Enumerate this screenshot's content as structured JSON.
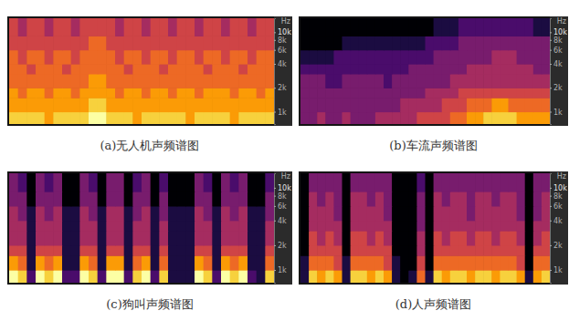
{
  "chart_data": [
    {
      "type": "heatmap",
      "title": "(a)无人机声频谱图",
      "y_label": "Hz",
      "log": "y",
      "tick_labels": "y",
      "ylim": [
        700,
        15000
      ],
      "yticks": [
        {
          "value": 1000,
          "label": "1k"
        },
        {
          "value": 2000,
          "label": "2k"
        },
        {
          "value": 4000,
          "label": "4k"
        },
        {
          "value": 6000,
          "label": "6k"
        },
        {
          "value": 8000,
          "label": "8k"
        },
        {
          "value": 10000,
          "label": "10k"
        }
      ],
      "y_bins": [
        700,
        1000,
        1500,
        2000,
        3000,
        4000,
        6000,
        9000,
        15000
      ],
      "zlim": [
        0,
        9
      ],
      "cells": [
        [
          8,
          8,
          8,
          8,
          7,
          8,
          8,
          8,
          8,
          9,
          9,
          8,
          8,
          8,
          7,
          8,
          8,
          8,
          8,
          8,
          7,
          8,
          8,
          8,
          8,
          7,
          8,
          8,
          8,
          8
        ],
        [
          7,
          7,
          7,
          7,
          7,
          7,
          7,
          7,
          7,
          8,
          8,
          7,
          7,
          7,
          7,
          7,
          7,
          7,
          7,
          7,
          7,
          7,
          7,
          7,
          7,
          7,
          7,
          7,
          7,
          7
        ],
        [
          7,
          6,
          7,
          7,
          6,
          7,
          7,
          6,
          7,
          7,
          7,
          7,
          6,
          7,
          7,
          6,
          7,
          7,
          6,
          7,
          7,
          6,
          7,
          7,
          7,
          6,
          7,
          7,
          6,
          7
        ],
        [
          6,
          6,
          6,
          6,
          6,
          6,
          6,
          6,
          6,
          7,
          7,
          6,
          6,
          6,
          6,
          6,
          6,
          6,
          6,
          6,
          6,
          6,
          6,
          6,
          6,
          6,
          6,
          6,
          6,
          6
        ],
        [
          6,
          6,
          5,
          6,
          6,
          6,
          5,
          6,
          6,
          6,
          6,
          6,
          6,
          5,
          6,
          6,
          6,
          5,
          6,
          6,
          6,
          6,
          5,
          6,
          6,
          6,
          5,
          6,
          6,
          6
        ],
        [
          6,
          5,
          6,
          6,
          5,
          6,
          6,
          5,
          6,
          6,
          6,
          6,
          5,
          6,
          6,
          5,
          6,
          6,
          5,
          6,
          6,
          5,
          6,
          6,
          5,
          6,
          6,
          5,
          6,
          6
        ],
        [
          5,
          5,
          5,
          5,
          5,
          5,
          5,
          5,
          5,
          6,
          6,
          5,
          5,
          5,
          5,
          5,
          5,
          5,
          5,
          5,
          5,
          5,
          5,
          5,
          5,
          5,
          5,
          5,
          5,
          5
        ],
        [
          5,
          4,
          5,
          5,
          4,
          5,
          5,
          4,
          5,
          5,
          5,
          5,
          4,
          5,
          5,
          4,
          5,
          5,
          4,
          5,
          5,
          4,
          5,
          5,
          4,
          5,
          5,
          4,
          5,
          5
        ]
      ]
    },
    {
      "type": "heatmap",
      "title": "(b)车流声频谱图",
      "y_label": "Hz",
      "log": "y",
      "tick_labels": "y",
      "ylim": [
        700,
        15000
      ],
      "yticks": [
        {
          "value": 1000,
          "label": "1k"
        },
        {
          "value": 2000,
          "label": "2k"
        },
        {
          "value": 4000,
          "label": "4k"
        },
        {
          "value": 6000,
          "label": "6k"
        },
        {
          "value": 8000,
          "label": "8k"
        },
        {
          "value": 10000,
          "label": "10k"
        }
      ],
      "y_bins": [
        700,
        1000,
        1500,
        2000,
        3000,
        4000,
        6000,
        9000,
        15000
      ],
      "zlim": [
        0,
        9
      ],
      "cells": [
        [
          3,
          3,
          4,
          3,
          3,
          4,
          3,
          3,
          3,
          4,
          4,
          4,
          4,
          4,
          5,
          5,
          5,
          5,
          6,
          6,
          7,
          7,
          8,
          8,
          8,
          8,
          7,
          7,
          7,
          7
        ],
        [
          3,
          3,
          3,
          3,
          3,
          3,
          3,
          3,
          3,
          3,
          3,
          3,
          4,
          4,
          4,
          4,
          4,
          5,
          5,
          5,
          6,
          6,
          6,
          7,
          7,
          6,
          6,
          6,
          6,
          6
        ],
        [
          3,
          3,
          3,
          3,
          3,
          3,
          3,
          3,
          3,
          3,
          3,
          3,
          3,
          3,
          3,
          4,
          4,
          4,
          4,
          5,
          5,
          5,
          5,
          5,
          5,
          5,
          5,
          5,
          5,
          5
        ],
        [
          3,
          3,
          3,
          2,
          2,
          3,
          3,
          3,
          3,
          3,
          2,
          3,
          3,
          3,
          3,
          3,
          3,
          3,
          4,
          4,
          4,
          4,
          4,
          4,
          4,
          4,
          4,
          4,
          4,
          4
        ],
        [
          2,
          2,
          2,
          2,
          2,
          2,
          2,
          2,
          2,
          2,
          2,
          2,
          2,
          3,
          3,
          3,
          3,
          3,
          3,
          3,
          4,
          4,
          4,
          4,
          4,
          4,
          4,
          4,
          3,
          3
        ],
        [
          1,
          1,
          1,
          1,
          2,
          2,
          2,
          2,
          2,
          2,
          2,
          2,
          2,
          2,
          2,
          2,
          3,
          3,
          3,
          3,
          3,
          3,
          3,
          4,
          4,
          4,
          3,
          3,
          3,
          3
        ],
        [
          0,
          0,
          0,
          0,
          0,
          1,
          1,
          1,
          1,
          1,
          1,
          1,
          1,
          1,
          1,
          2,
          2,
          2,
          2,
          3,
          3,
          3,
          3,
          3,
          3,
          3,
          3,
          3,
          3,
          3
        ],
        [
          0,
          0,
          0,
          0,
          0,
          0,
          0,
          0,
          0,
          0,
          0,
          0,
          0,
          0,
          0,
          0,
          1,
          1,
          1,
          2,
          2,
          2,
          2,
          2,
          2,
          2,
          2,
          2,
          1,
          1
        ]
      ]
    },
    {
      "type": "heatmap",
      "title": "(c)狗叫声频谱图",
      "y_label": "Hz",
      "log": "y",
      "tick_labels": "y",
      "ylim": [
        700,
        15000
      ],
      "yticks": [
        {
          "value": 1000,
          "label": "1k"
        },
        {
          "value": 2000,
          "label": "2k"
        },
        {
          "value": 4000,
          "label": "4k"
        },
        {
          "value": 6000,
          "label": "6k"
        },
        {
          "value": 8000,
          "label": "8k"
        },
        {
          "value": 10000,
          "label": "10k"
        }
      ],
      "y_bins": [
        700,
        1000,
        1500,
        2000,
        3000,
        4000,
        6000,
        9000,
        15000
      ],
      "zlim": [
        0,
        9
      ],
      "cells": [
        [
          9,
          8,
          2,
          9,
          8,
          9,
          2,
          2,
          9,
          8,
          2,
          9,
          9,
          2,
          8,
          9,
          2,
          8,
          1,
          1,
          1,
          9,
          8,
          2,
          9,
          8,
          9,
          2,
          1,
          8
        ],
        [
          7,
          6,
          1,
          7,
          6,
          7,
          1,
          1,
          7,
          6,
          1,
          7,
          7,
          1,
          6,
          7,
          1,
          6,
          1,
          1,
          1,
          7,
          6,
          1,
          7,
          6,
          7,
          1,
          1,
          6
        ],
        [
          5,
          5,
          1,
          5,
          5,
          5,
          1,
          1,
          5,
          5,
          1,
          5,
          5,
          1,
          5,
          5,
          1,
          5,
          1,
          1,
          1,
          5,
          5,
          1,
          5,
          5,
          5,
          1,
          1,
          5
        ],
        [
          4,
          4,
          1,
          4,
          4,
          4,
          1,
          1,
          4,
          4,
          1,
          4,
          4,
          1,
          4,
          4,
          1,
          4,
          1,
          1,
          1,
          4,
          4,
          1,
          4,
          4,
          4,
          1,
          1,
          4
        ],
        [
          4,
          4,
          1,
          4,
          4,
          4,
          1,
          1,
          4,
          4,
          1,
          4,
          4,
          1,
          4,
          4,
          1,
          4,
          1,
          1,
          1,
          4,
          4,
          1,
          4,
          4,
          4,
          1,
          1,
          4
        ],
        [
          4,
          3,
          1,
          4,
          3,
          4,
          1,
          1,
          4,
          3,
          1,
          4,
          4,
          1,
          3,
          4,
          1,
          3,
          1,
          1,
          1,
          4,
          3,
          1,
          4,
          3,
          4,
          1,
          1,
          3
        ],
        [
          3,
          3,
          0,
          3,
          3,
          3,
          0,
          0,
          3,
          3,
          0,
          3,
          3,
          0,
          3,
          3,
          0,
          3,
          0,
          0,
          0,
          3,
          3,
          0,
          3,
          3,
          3,
          0,
          0,
          3
        ],
        [
          3,
          2,
          0,
          3,
          2,
          3,
          0,
          0,
          3,
          2,
          0,
          3,
          3,
          0,
          2,
          3,
          0,
          2,
          0,
          0,
          0,
          3,
          2,
          0,
          3,
          2,
          3,
          0,
          0,
          2
        ]
      ]
    },
    {
      "type": "heatmap",
      "title": "(d)人声频谱图",
      "y_label": "Hz",
      "log": "y",
      "tick_labels": "y",
      "ylim": [
        700,
        15000
      ],
      "yticks": [
        {
          "value": 1000,
          "label": "1k"
        },
        {
          "value": 2000,
          "label": "2k"
        },
        {
          "value": 4000,
          "label": "4k"
        },
        {
          "value": 6000,
          "label": "6k"
        },
        {
          "value": 8000,
          "label": "8k"
        },
        {
          "value": 10000,
          "label": "10k"
        }
      ],
      "y_bins": [
        700,
        1000,
        1500,
        2000,
        3000,
        4000,
        6000,
        9000,
        15000
      ],
      "zlim": [
        0,
        9
      ],
      "cells": [
        [
          1,
          8,
          7,
          8,
          7,
          1,
          8,
          8,
          7,
          8,
          7,
          1,
          0,
          1,
          6,
          1,
          8,
          7,
          8,
          8,
          7,
          8,
          8,
          7,
          8,
          8,
          7,
          1,
          7,
          8
        ],
        [
          1,
          6,
          6,
          6,
          5,
          1,
          6,
          6,
          6,
          6,
          5,
          1,
          0,
          0,
          5,
          0,
          6,
          6,
          6,
          6,
          6,
          6,
          6,
          6,
          6,
          6,
          5,
          0,
          6,
          6
        ],
        [
          0,
          5,
          5,
          5,
          5,
          0,
          5,
          5,
          5,
          5,
          5,
          0,
          0,
          0,
          4,
          0,
          5,
          5,
          5,
          5,
          5,
          5,
          5,
          5,
          5,
          5,
          5,
          0,
          5,
          5
        ],
        [
          0,
          5,
          4,
          5,
          4,
          0,
          5,
          5,
          4,
          5,
          4,
          0,
          0,
          0,
          4,
          0,
          5,
          4,
          5,
          5,
          4,
          5,
          5,
          4,
          5,
          5,
          4,
          0,
          4,
          5
        ],
        [
          0,
          4,
          4,
          4,
          4,
          0,
          4,
          4,
          4,
          4,
          4,
          0,
          0,
          0,
          3,
          0,
          4,
          4,
          4,
          4,
          4,
          4,
          4,
          4,
          4,
          4,
          4,
          0,
          4,
          4
        ],
        [
          0,
          4,
          4,
          4,
          3,
          0,
          4,
          4,
          4,
          4,
          3,
          0,
          0,
          0,
          3,
          0,
          4,
          4,
          4,
          4,
          3,
          4,
          4,
          4,
          4,
          4,
          3,
          0,
          3,
          4
        ],
        [
          0,
          4,
          3,
          4,
          3,
          0,
          4,
          4,
          3,
          4,
          3,
          0,
          0,
          0,
          3,
          0,
          4,
          3,
          4,
          4,
          3,
          4,
          4,
          3,
          4,
          4,
          3,
          0,
          3,
          4
        ],
        [
          0,
          3,
          3,
          3,
          3,
          0,
          3,
          3,
          3,
          3,
          3,
          0,
          0,
          0,
          2,
          0,
          3,
          3,
          3,
          3,
          3,
          3,
          3,
          3,
          3,
          3,
          3,
          0,
          3,
          3
        ]
      ]
    }
  ]
}
